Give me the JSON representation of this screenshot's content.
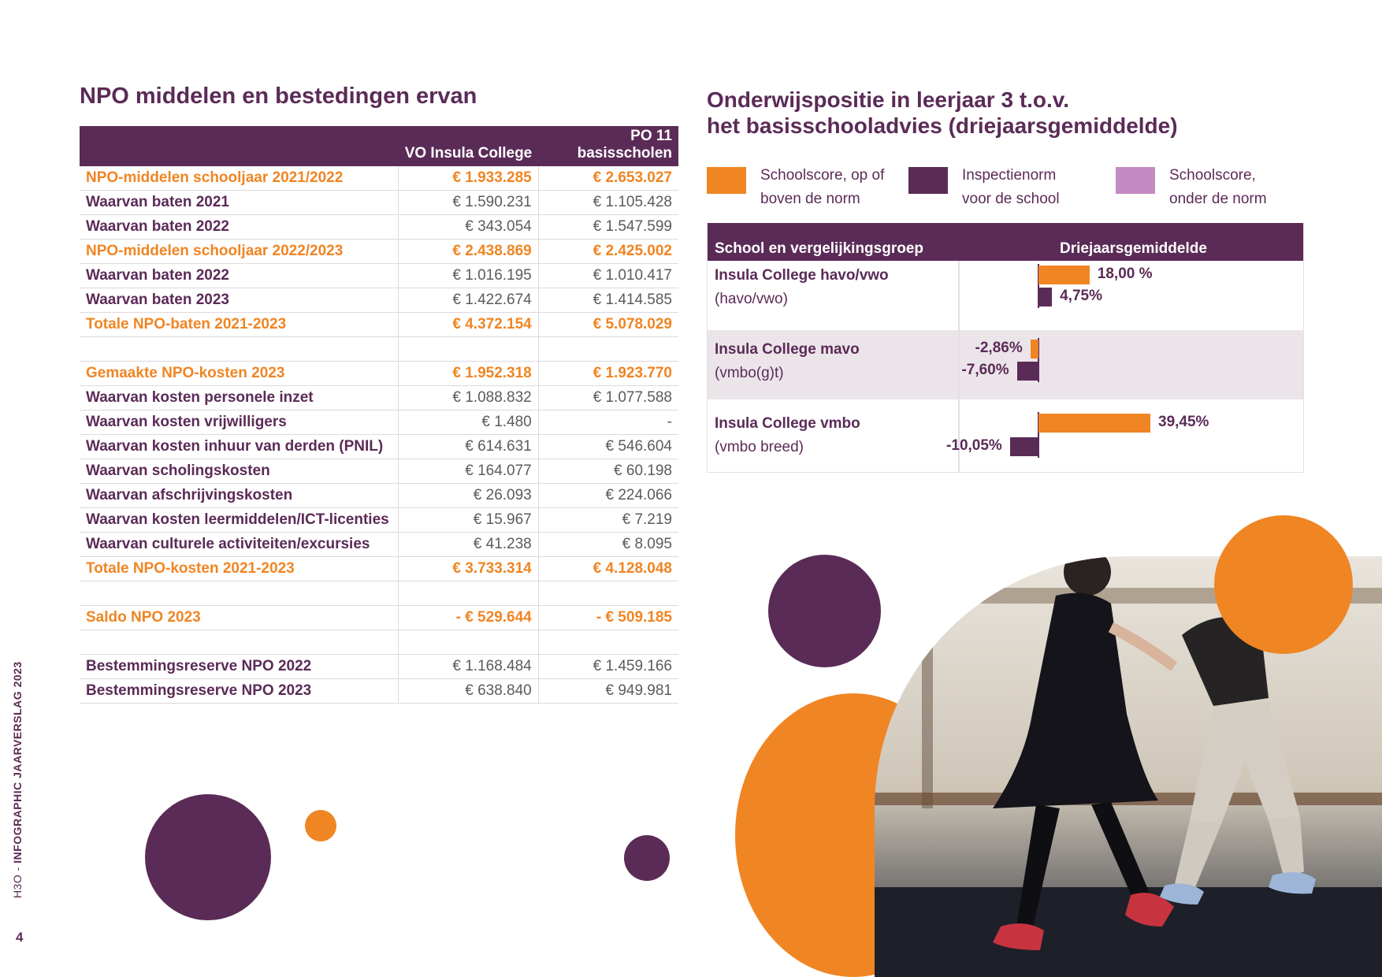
{
  "left": {
    "title": "NPO middelen en bestedingen ervan",
    "table": {
      "headers": [
        "",
        "VO Insula College",
        "PO 11 basisscholen"
      ],
      "rows": [
        {
          "label": "NPO-middelen schooljaar 2021/2022",
          "vo": "€ 1.933.285",
          "po": "€ 2.653.027",
          "highlight": true
        },
        {
          "label": "Waarvan baten 2021",
          "vo": "€ 1.590.231",
          "po": "€ 1.105.428",
          "highlight": false
        },
        {
          "label": "Waarvan baten 2022",
          "vo": "€ 343.054",
          "po": "€ 1.547.599",
          "highlight": false
        },
        {
          "label": "NPO-middelen schooljaar 2022/2023",
          "vo": "€ 2.438.869",
          "po": "€ 2.425.002",
          "highlight": true
        },
        {
          "label": "Waarvan baten 2022",
          "vo": "€ 1.016.195",
          "po": "€ 1.010.417",
          "highlight": false
        },
        {
          "label": "Waarvan baten 2023",
          "vo": "€ 1.422.674",
          "po": "€ 1.414.585",
          "highlight": false
        },
        {
          "label": "Totale NPO-baten 2021-2023",
          "vo": "€ 4.372.154",
          "po": "€ 5.078.029",
          "highlight": true
        },
        {
          "label": "",
          "vo": "",
          "po": "",
          "highlight": false
        },
        {
          "label": "Gemaakte NPO-kosten 2023",
          "vo": "€ 1.952.318",
          "po": "€ 1.923.770",
          "highlight": true
        },
        {
          "label": "Waarvan kosten personele inzet",
          "vo": "€ 1.088.832",
          "po": "€ 1.077.588",
          "highlight": false
        },
        {
          "label": "Waarvan kosten vrijwilligers",
          "vo": "€ 1.480",
          "po": "-",
          "highlight": false
        },
        {
          "label": "Waarvan kosten inhuur van derden (PNIL)",
          "vo": "€ 614.631",
          "po": "€ 546.604",
          "highlight": false
        },
        {
          "label": "Waarvan scholingskosten",
          "vo": "€ 164.077",
          "po": "€ 60.198",
          "highlight": false
        },
        {
          "label": "Waarvan afschrijvingskosten",
          "vo": "€ 26.093",
          "po": "€ 224.066",
          "highlight": false
        },
        {
          "label": "Waarvan kosten leermiddelen/ICT-licenties",
          "vo": "€ 15.967",
          "po": "€ 7.219",
          "highlight": false
        },
        {
          "label": "Waarvan culturele activiteiten/excursies",
          "vo": "€ 41.238",
          "po": "€ 8.095",
          "highlight": false
        },
        {
          "label": "Totale NPO-kosten 2021-2023",
          "vo": "€ 3.733.314",
          "po": "€ 4.128.048",
          "highlight": true
        },
        {
          "label": "",
          "vo": "",
          "po": "",
          "highlight": false
        },
        {
          "label": "Saldo NPO 2023",
          "vo": "- € 529.644",
          "po": "- € 509.185",
          "highlight": true
        },
        {
          "label": "",
          "vo": "",
          "po": "",
          "highlight": false
        },
        {
          "label": "Bestemmingsreserve NPO 2022",
          "vo": "€ 1.168.484",
          "po": "€ 1.459.166",
          "highlight": false
        },
        {
          "label": "Bestemmingsreserve NPO 2023",
          "vo": "€ 638.840",
          "po": "€ 949.981",
          "highlight": false
        }
      ]
    }
  },
  "right": {
    "title_line1": "Onderwijspositie in leerjaar 3 t.o.v.",
    "title_line2": "het basisschooladvies (driejaarsgemiddelde)",
    "legend": [
      {
        "line1": "Schoolscore, op of",
        "line2": "boven de norm",
        "color": "#f08523"
      },
      {
        "line1": "Inspectienorm",
        "line2": "voor de school",
        "color": "#5b2b57"
      },
      {
        "line1": "Schoolscore,",
        "line2": "onder de norm",
        "color": "#c48bc2"
      }
    ],
    "table_headers": {
      "col1": "School en vergelijkingsgroep",
      "col2": "Driejaarsgemiddelde"
    }
  },
  "chart_data": {
    "type": "bar",
    "categories": [
      "Insula College havo/vwo (havo/vwo)",
      "Insula College mavo (vmbo(g)t)",
      "Insula College vmbo (vmbo breed)"
    ],
    "rows": [
      {
        "name": "Insula College havo/vwo",
        "group": "(havo/vwo)",
        "school": 18.0,
        "school_label": "18,00 %",
        "norm": 4.75,
        "norm_label": "4,75%"
      },
      {
        "name": "Insula College mavo",
        "group": "(vmbo(g)t)",
        "school": -2.86,
        "school_label": "-2,86%",
        "norm": -7.6,
        "norm_label": "-7,60%"
      },
      {
        "name": "Insula College vmbo",
        "group": "(vmbo breed)",
        "school": 39.45,
        "school_label": "39,45%",
        "norm": -10.05,
        "norm_label": "-10,05%"
      }
    ],
    "series": [
      {
        "name": "Schoolscore, op of boven de norm",
        "color": "#f08523"
      },
      {
        "name": "Inspectienorm voor de school",
        "color": "#5b2b57"
      }
    ],
    "title": "Onderwijspositie in leerjaar 3 t.o.v. het basisschooladvies (driejaarsgemiddelde)",
    "unit": "%"
  },
  "footer": {
    "brand": "H3O",
    "separator": " - ",
    "doc": "INFOGRAPHIC JAARVERSLAG 2023",
    "page": "4"
  },
  "colors": {
    "purple": "#5b2b57",
    "orange": "#f08523",
    "lilac": "#c48bc2"
  }
}
